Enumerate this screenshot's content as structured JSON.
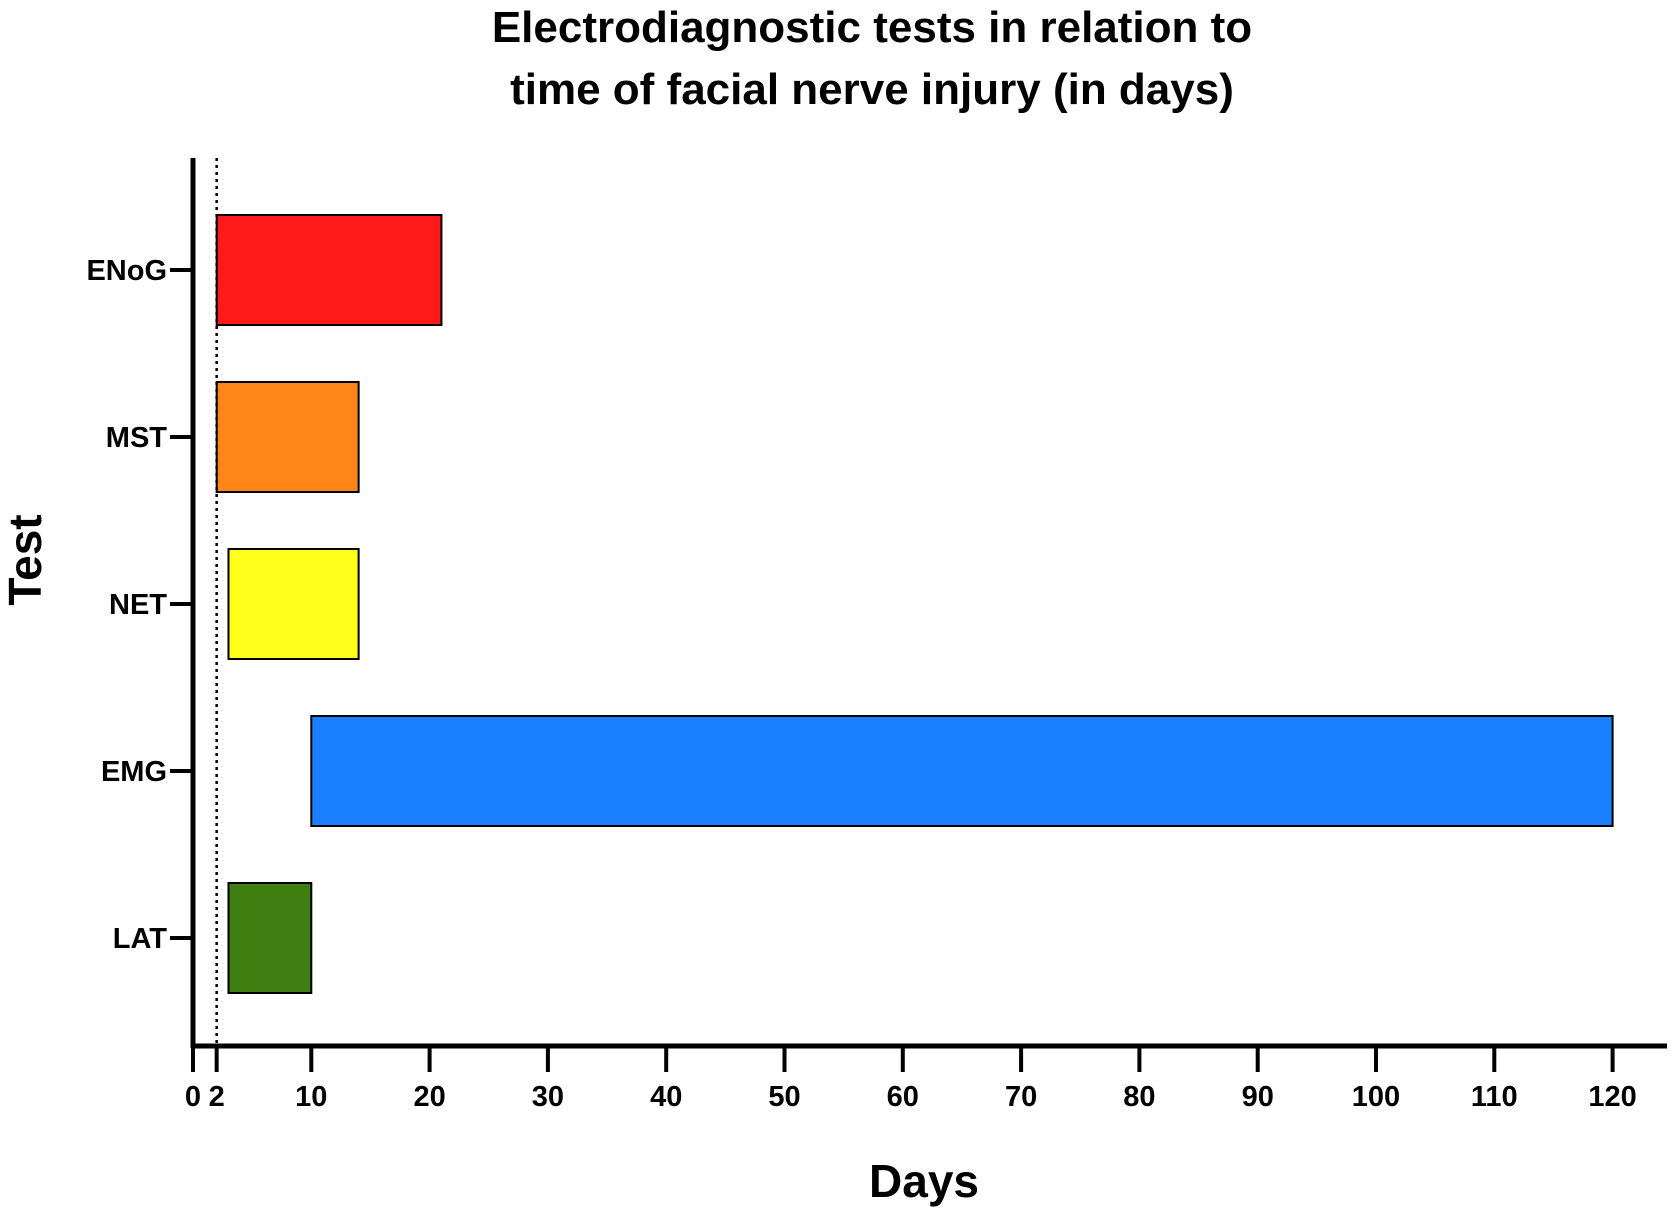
{
  "chart_data": {
    "type": "bar",
    "orientation": "horizontal",
    "title": [
      "Electrodiagnostic tests in relation to",
      "time of facial nerve injury (in days)"
    ],
    "xlabel": "Days",
    "ylabel": "Test",
    "xlim": [
      0,
      125
    ],
    "x_ticks": [
      0,
      2,
      10,
      20,
      30,
      40,
      50,
      60,
      70,
      80,
      90,
      100,
      110,
      120
    ],
    "reference_line": {
      "x": 2,
      "style": "dotted"
    },
    "grid": false,
    "legend": "none",
    "categories": [
      "ENoG",
      "MST",
      "NET",
      "EMG",
      "LAT"
    ],
    "series": [
      {
        "bars": [
          {
            "category": "ENoG",
            "start": 2,
            "end": 21,
            "color": "#ff1a1a"
          },
          {
            "category": "MST",
            "start": 2,
            "end": 14,
            "color": "#ff8519"
          },
          {
            "category": "NET",
            "start": 3,
            "end": 14,
            "color": "#ffff1a"
          },
          {
            "category": "EMG",
            "start": 10,
            "end": 120,
            "color": "#1a80ff"
          },
          {
            "category": "LAT",
            "start": 3,
            "end": 10,
            "color": "#3f7f11"
          }
        ]
      }
    ]
  }
}
